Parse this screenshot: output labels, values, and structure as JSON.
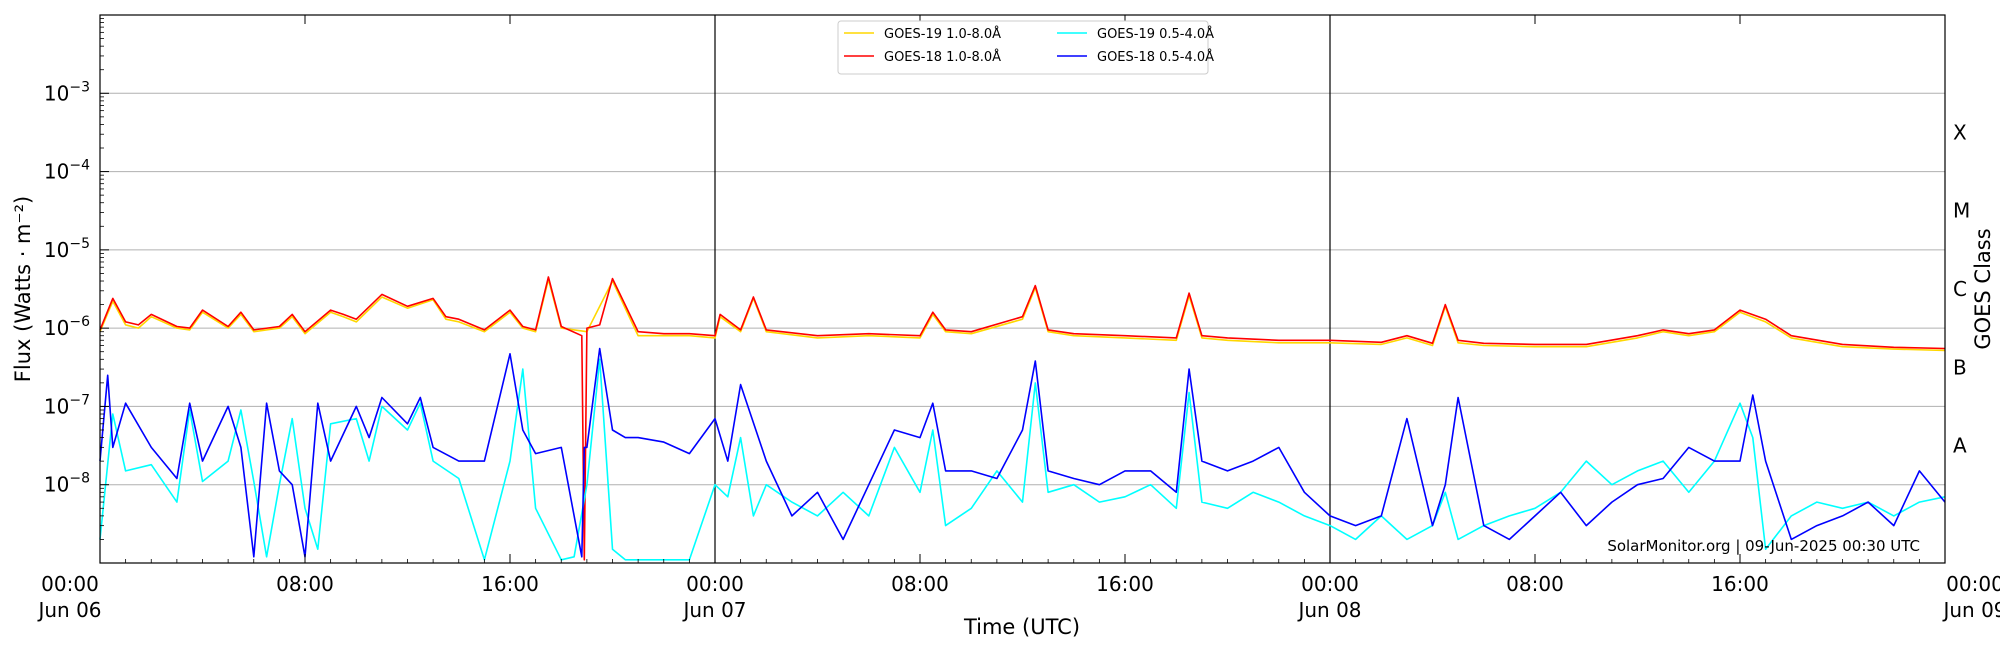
{
  "chart_data": {
    "type": "line",
    "title": "",
    "xlabel": "Time (UTC)",
    "ylabel": "Flux (Watts · m⁻²)",
    "right_ylabel": "GOES Class",
    "yscale": "log",
    "xlim": [
      0,
      72
    ],
    "ylim": [
      1e-09,
      0.01
    ],
    "grid": "horizontal",
    "legend_position": "top-center",
    "credit": "SolarMonitor.org | 09-Jun-2025 00:30 UTC",
    "day_separators": [
      24,
      48
    ],
    "x_ticks": [
      {
        "x": 0,
        "l1": "00:00",
        "l2": "Jun 06"
      },
      {
        "x": 8,
        "l1": "08:00",
        "l2": ""
      },
      {
        "x": 16,
        "l1": "16:00",
        "l2": ""
      },
      {
        "x": 24,
        "l1": "00:00",
        "l2": "Jun 07"
      },
      {
        "x": 32,
        "l1": "08:00",
        "l2": ""
      },
      {
        "x": 40,
        "l1": "16:00",
        "l2": ""
      },
      {
        "x": 48,
        "l1": "00:00",
        "l2": "Jun 08"
      },
      {
        "x": 56,
        "l1": "08:00",
        "l2": ""
      },
      {
        "x": 64,
        "l1": "16:00",
        "l2": ""
      },
      {
        "x": 72,
        "l1": "00:00",
        "l2": "Jun 09"
      }
    ],
    "y_ticks": [
      {
        "exp": -8,
        "label": "10",
        "sup": "−8"
      },
      {
        "exp": -7,
        "label": "10",
        "sup": "−7"
      },
      {
        "exp": -6,
        "label": "10",
        "sup": "−6"
      },
      {
        "exp": -5,
        "label": "10",
        "sup": "−5"
      },
      {
        "exp": -4,
        "label": "10",
        "sup": "−4"
      },
      {
        "exp": -3,
        "label": "10",
        "sup": "−3"
      }
    ],
    "goes_classes": [
      {
        "label": "A",
        "flux": 1e-08
      },
      {
        "label": "B",
        "flux": 1e-07
      },
      {
        "label": "C",
        "flux": 1e-06
      },
      {
        "label": "M",
        "flux": 1e-05
      },
      {
        "label": "X",
        "flux": 0.0001
      }
    ],
    "series": [
      {
        "name": "GOES-19 1.0-8.0Å",
        "color": "#ffd700",
        "x": [
          0,
          0.5,
          1,
          1.5,
          2,
          3,
          3.5,
          4,
          5,
          5.5,
          6,
          7,
          7.5,
          8,
          9,
          9.5,
          10,
          11,
          12,
          13,
          13.5,
          14,
          15,
          16,
          16.5,
          17,
          17.5,
          18,
          19,
          20,
          21,
          22,
          23,
          24,
          24.2,
          25,
          25.5,
          26,
          28,
          30,
          32,
          32.5,
          33,
          34,
          36,
          36.5,
          37,
          38,
          40,
          42,
          42.5,
          43,
          44,
          46,
          48,
          50,
          51,
          52,
          52.5,
          53,
          54,
          56,
          58,
          60,
          61,
          62,
          63,
          64,
          65,
          66,
          68,
          70,
          72
        ],
        "values": [
          9e-07,
          2.2e-06,
          1.1e-06,
          1e-06,
          1.4e-06,
          1e-06,
          9.5e-07,
          1.6e-06,
          1e-06,
          1.5e-06,
          9e-07,
          1e-06,
          1.4e-06,
          8.5e-07,
          1.6e-06,
          1.4e-06,
          1.2e-06,
          2.5e-06,
          1.8e-06,
          2.3e-06,
          1.3e-06,
          1.2e-06,
          9e-07,
          1.6e-06,
          1e-06,
          9e-07,
          4.2e-06,
          1e-06,
          9e-07,
          4e-06,
          8e-07,
          8e-07,
          8e-07,
          7.5e-07,
          1.4e-06,
          9e-07,
          2.4e-06,
          9e-07,
          7.5e-07,
          8e-07,
          7.5e-07,
          1.5e-06,
          9e-07,
          8.5e-07,
          1.3e-06,
          3.3e-06,
          9e-07,
          8e-07,
          7.5e-07,
          7e-07,
          2.6e-06,
          7.5e-07,
          7e-07,
          6.5e-07,
          6.5e-07,
          6.2e-07,
          7.5e-07,
          6e-07,
          1.9e-06,
          6.5e-07,
          6e-07,
          5.8e-07,
          5.8e-07,
          7.5e-07,
          9e-07,
          8e-07,
          9e-07,
          1.6e-06,
          1.2e-06,
          7.5e-07,
          5.8e-07,
          5.4e-07,
          5.2e-07
        ]
      },
      {
        "name": "GOES-18 1.0-8.0Å",
        "color": "#ff0000",
        "x": [
          0,
          0.5,
          1,
          1.5,
          2,
          3,
          3.5,
          4,
          5,
          5.5,
          6,
          7,
          7.5,
          8,
          9,
          9.5,
          10,
          11,
          12,
          13,
          13.5,
          14,
          15,
          16,
          16.5,
          17,
          17.5,
          18,
          18.8,
          18.9,
          19,
          19.5,
          20,
          21,
          22,
          23,
          24,
          24.2,
          25,
          25.5,
          26,
          28,
          30,
          32,
          32.5,
          33,
          34,
          36,
          36.5,
          37,
          38,
          40,
          42,
          42.5,
          43,
          44,
          46,
          48,
          50,
          51,
          52,
          52.5,
          53,
          54,
          56,
          58,
          60,
          61,
          62,
          63,
          64,
          65,
          66,
          68,
          70,
          72
        ],
        "values": [
          9.5e-07,
          2.4e-06,
          1.2e-06,
          1.1e-06,
          1.5e-06,
          1.05e-06,
          1e-06,
          1.7e-06,
          1.05e-06,
          1.6e-06,
          9.5e-07,
          1.05e-06,
          1.5e-06,
          9e-07,
          1.7e-06,
          1.5e-06,
          1.3e-06,
          2.7e-06,
          1.9e-06,
          2.4e-06,
          1.4e-06,
          1.3e-06,
          9.5e-07,
          1.7e-06,
          1.05e-06,
          9.5e-07,
          4.5e-06,
          1.05e-06,
          8e-07,
          1.1e-09,
          1e-06,
          1.1e-06,
          4.3e-06,
          9e-07,
          8.5e-07,
          8.5e-07,
          8e-07,
          1.5e-06,
          9.5e-07,
          2.5e-06,
          9.5e-07,
          8e-07,
          8.5e-07,
          8e-07,
          1.6e-06,
          9.5e-07,
          9e-07,
          1.4e-06,
          3.5e-06,
          9.5e-07,
          8.5e-07,
          8e-07,
          7.5e-07,
          2.8e-06,
          8e-07,
          7.5e-07,
          7e-07,
          7e-07,
          6.6e-07,
          8e-07,
          6.4e-07,
          2e-06,
          7e-07,
          6.4e-07,
          6.2e-07,
          6.2e-07,
          8e-07,
          9.5e-07,
          8.5e-07,
          9.5e-07,
          1.7e-06,
          1.3e-06,
          8e-07,
          6.2e-07,
          5.7e-07,
          5.5e-07
        ]
      },
      {
        "name": "GOES-19 0.5-4.0Å",
        "color": "#00ffff",
        "x": [
          0,
          0.5,
          1,
          2,
          3,
          3.5,
          4,
          5,
          5.5,
          6,
          6.5,
          7,
          7.5,
          8,
          8.5,
          9,
          10,
          10.5,
          11,
          12,
          12.5,
          13,
          14,
          15,
          16,
          16.5,
          17,
          18,
          18.5,
          19,
          19.5,
          20,
          20.5,
          21,
          22,
          23,
          24,
          24.5,
          25,
          25.5,
          26,
          27,
          28,
          29,
          30,
          31,
          32,
          32.5,
          33,
          34,
          35,
          36,
          36.5,
          37,
          38,
          39,
          40,
          41,
          42,
          42.5,
          43,
          44,
          45,
          46,
          47,
          48,
          49,
          50,
          51,
          52,
          52.5,
          53,
          54,
          55,
          56,
          57,
          58,
          59,
          60,
          61,
          62,
          63,
          64,
          64.5,
          65,
          66,
          67,
          68,
          69,
          70,
          71,
          72
        ],
        "values": [
          2e-09,
          8e-08,
          1.5e-08,
          1.8e-08,
          6e-09,
          9e-08,
          1.1e-08,
          2e-08,
          9e-08,
          1.1e-08,
          1.2e-09,
          1e-08,
          7e-08,
          5e-09,
          1.5e-09,
          6e-08,
          7e-08,
          2e-08,
          1e-07,
          5e-08,
          1.1e-07,
          2e-08,
          1.2e-08,
          1.1e-09,
          2e-08,
          3e-07,
          5e-09,
          1.1e-09,
          1.2e-09,
          1e-08,
          4e-07,
          1.5e-09,
          1.1e-09,
          1.1e-09,
          1.1e-09,
          1.1e-09,
          1e-08,
          7e-09,
          4e-08,
          4e-09,
          1e-08,
          6e-09,
          4e-09,
          8e-09,
          4e-09,
          3e-08,
          8e-09,
          5e-08,
          3e-09,
          5e-09,
          1.5e-08,
          6e-09,
          2e-07,
          8e-09,
          1e-08,
          6e-09,
          7e-09,
          1e-08,
          5e-09,
          1.5e-07,
          6e-09,
          5e-09,
          8e-09,
          6e-09,
          4e-09,
          3e-09,
          2e-09,
          4e-09,
          2e-09,
          3e-09,
          8e-09,
          2e-09,
          3e-09,
          4e-09,
          5e-09,
          8e-09,
          2e-08,
          1e-08,
          1.5e-08,
          2e-08,
          8e-09,
          2e-08,
          1.1e-07,
          4e-08,
          1.5e-09,
          4e-09,
          6e-09,
          5e-09,
          6e-09,
          4e-09,
          6e-09,
          7e-09
        ]
      },
      {
        "name": "GOES-18 0.5-4.0Å",
        "color": "#0000ff",
        "x": [
          0,
          0.3,
          0.5,
          1,
          2,
          3,
          3.5,
          4,
          5,
          5.5,
          6,
          6.5,
          7,
          7.5,
          8,
          8.5,
          9,
          10,
          10.5,
          11,
          12,
          12.5,
          13,
          14,
          15,
          16,
          16.5,
          17,
          18,
          18.8,
          18.9,
          19,
          19.5,
          20,
          20.5,
          21,
          22,
          23,
          24,
          24.5,
          25,
          26,
          27,
          28,
          29,
          30,
          31,
          32,
          32.5,
          33,
          34,
          35,
          36,
          36.5,
          37,
          38,
          39,
          40,
          41,
          42,
          42.5,
          43,
          44,
          45,
          46,
          47,
          48,
          49,
          50,
          51,
          52,
          52.5,
          53,
          54,
          55,
          56,
          57,
          58,
          59,
          60,
          61,
          62,
          63,
          64,
          64.5,
          65,
          66,
          67,
          68,
          69,
          70,
          71,
          72
        ],
        "values": [
          2e-08,
          2.5e-07,
          3e-08,
          1.1e-07,
          3e-08,
          1.2e-08,
          1.1e-07,
          2e-08,
          1e-07,
          3e-08,
          1.2e-09,
          1.1e-07,
          1.5e-08,
          1e-08,
          1.2e-09,
          1.1e-07,
          2e-08,
          1e-07,
          4e-08,
          1.3e-07,
          6e-08,
          1.3e-07,
          3e-08,
          2e-08,
          2e-08,
          4.7e-07,
          5e-08,
          2.5e-08,
          3e-08,
          1.2e-09,
          3e-08,
          3e-08,
          5.5e-07,
          5e-08,
          4e-08,
          4e-08,
          3.5e-08,
          2.5e-08,
          7e-08,
          2e-08,
          1.9e-07,
          2e-08,
          4e-09,
          8e-09,
          2e-09,
          1e-08,
          5e-08,
          4e-08,
          1.1e-07,
          1.5e-08,
          1.5e-08,
          1.2e-08,
          5e-08,
          3.8e-07,
          1.5e-08,
          1.2e-08,
          1e-08,
          1.5e-08,
          1.5e-08,
          8e-09,
          3e-07,
          2e-08,
          1.5e-08,
          2e-08,
          3e-08,
          8e-09,
          4e-09,
          3e-09,
          4e-09,
          7e-08,
          3e-09,
          1e-08,
          1.3e-07,
          3e-09,
          2e-09,
          4e-09,
          8e-09,
          3e-09,
          6e-09,
          1e-08,
          1.2e-08,
          3e-08,
          2e-08,
          2e-08,
          1.4e-07,
          2e-08,
          2e-09,
          3e-09,
          4e-09,
          6e-09,
          3e-09,
          1.5e-08,
          6e-09
        ]
      }
    ]
  }
}
